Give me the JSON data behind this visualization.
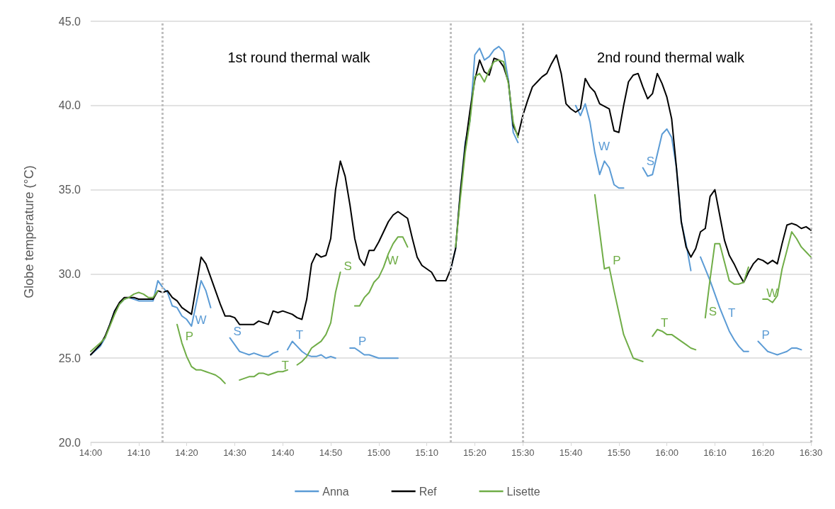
{
  "chart_data": {
    "type": "line",
    "ylabel": "Globe temperature (°C)",
    "xlim": [
      14,
      16.5
    ],
    "ylim": [
      20,
      45
    ],
    "xticks": [
      {
        "value": 14,
        "label": "14:00"
      },
      {
        "value": 14.1667,
        "label": "14:10"
      },
      {
        "value": 14.3333,
        "label": "14:20"
      },
      {
        "value": 14.5,
        "label": "14:30"
      },
      {
        "value": 14.6667,
        "label": "14:40"
      },
      {
        "value": 14.8333,
        "label": "14:50"
      },
      {
        "value": 15,
        "label": "15:00"
      },
      {
        "value": 15.1667,
        "label": "15:10"
      },
      {
        "value": 15.3333,
        "label": "15:20"
      },
      {
        "value": 15.5,
        "label": "15:30"
      },
      {
        "value": 15.6667,
        "label": "15:40"
      },
      {
        "value": 15.8333,
        "label": "15:50"
      },
      {
        "value": 16,
        "label": "16:00"
      },
      {
        "value": 16.1667,
        "label": "16:10"
      },
      {
        "value": 16.3333,
        "label": "16:20"
      },
      {
        "value": 16.5,
        "label": "16:30"
      }
    ],
    "yticks": [
      {
        "value": 20,
        "label": "20.0"
      },
      {
        "value": 25,
        "label": "25.0"
      },
      {
        "value": 30,
        "label": "30.0"
      },
      {
        "value": 35,
        "label": "35.0"
      },
      {
        "value": 40,
        "label": "40.0"
      },
      {
        "value": 45,
        "label": "45.0"
      }
    ],
    "grid": "y",
    "legend": "bottom",
    "marker": "none",
    "line_style": "solid",
    "series": [
      {
        "name": "Anna",
        "color": "#5b9bd5",
        "x": [
          14,
          14.0333,
          14.05,
          14.0667,
          14.0833,
          14.1,
          14.1167,
          14.1333,
          14.15,
          14.1667,
          14.2167,
          14.2333,
          14.25,
          14.2667,
          14.2833,
          14.3,
          14.3167,
          14.3333,
          14.35,
          14.3833,
          14.4,
          14.4167,
          14.45,
          14.4833,
          14.5,
          14.5167,
          14.5333,
          14.55,
          14.5667,
          14.5833,
          14.6,
          14.6167,
          14.6333,
          14.65,
          14.6667,
          14.6833,
          14.7,
          14.7167,
          14.7333,
          14.75,
          14.7667,
          14.7833,
          14.8,
          14.8167,
          14.8333,
          14.85,
          14.8667,
          14.9,
          14.9167,
          14.95,
          14.9667,
          15,
          15.0667,
          15.1667,
          15.25,
          15.2667,
          15.2833,
          15.3,
          15.3167,
          15.3333,
          15.35,
          15.3667,
          15.3833,
          15.4,
          15.4167,
          15.4333,
          15.45,
          15.4667,
          15.4833,
          15.5833,
          15.6833,
          15.7,
          15.7167,
          15.7333,
          15.75,
          15.7667,
          15.7833,
          15.8,
          15.8167,
          15.8333,
          15.85,
          15.8833,
          15.9167,
          15.9333,
          15.95,
          15.9667,
          15.9833,
          16,
          16.0167,
          16.0333,
          16.05,
          16.0667,
          16.0833,
          16.1,
          16.1167,
          16.15,
          16.1667,
          16.1833,
          16.2,
          16.2167,
          16.2333,
          16.25,
          16.2667,
          16.2833,
          16.3,
          16.3167,
          16.3333,
          16.35,
          16.3667,
          16.3833,
          16.4,
          16.4167,
          16.4333,
          16.45,
          16.4667
        ],
        "values": [
          25.2,
          25.7,
          26.2,
          27.0,
          27.8,
          28.2,
          28.5,
          28.6,
          28.5,
          28.4,
          28.4,
          29.6,
          29.2,
          28.9,
          28.1,
          28.0,
          27.5,
          27.3,
          26.9,
          29.6,
          29.0,
          28.0,
          null,
          26.2,
          25.8,
          25.4,
          25.3,
          25.2,
          25.3,
          25.2,
          25.1,
          25.1,
          25.3,
          25.4,
          null,
          25.5,
          26.0,
          25.7,
          25.4,
          25.2,
          25.1,
          25.1,
          25.2,
          25.0,
          25.1,
          25.0,
          null,
          25.6,
          25.6,
          25.2,
          25.2,
          25.0,
          25.0,
          null,
          30.3,
          31.5,
          34.9,
          37.8,
          39.1,
          43.0,
          43.4,
          42.7,
          42.9,
          43.3,
          43.5,
          43.2,
          41.5,
          38.4,
          37.8,
          null,
          40.0,
          39.4,
          40.1,
          39.0,
          37.2,
          35.9,
          36.7,
          36.3,
          35.3,
          35.1,
          35.1,
          null,
          36.3,
          35.8,
          35.9,
          37.1,
          38.3,
          38.6,
          38.1,
          36.3,
          33.1,
          31.8,
          30.2,
          null,
          31.0,
          29.6,
          28.8,
          28.0,
          27.3,
          26.6,
          26.1,
          25.7,
          25.4,
          25.4,
          null,
          26.0,
          25.7,
          25.4,
          25.3,
          25.2,
          25.3,
          25.4,
          25.6,
          25.6,
          25.5
        ]
      },
      {
        "name": "Ref",
        "color": "#000000",
        "x": [
          14,
          14.0333,
          14.05,
          14.0667,
          14.0833,
          14.1,
          14.1167,
          14.15,
          14.1667,
          14.2,
          14.2167,
          14.2333,
          14.25,
          14.2667,
          14.2833,
          14.3,
          14.3167,
          14.35,
          14.3833,
          14.4,
          14.4167,
          14.4333,
          14.45,
          14.4667,
          14.4833,
          14.5,
          14.5167,
          14.5667,
          14.5833,
          14.6167,
          14.6333,
          14.65,
          14.6667,
          14.7,
          14.7167,
          14.7333,
          14.75,
          14.7667,
          14.7833,
          14.8,
          14.8167,
          14.8333,
          14.85,
          14.8667,
          14.8833,
          14.9,
          14.9167,
          14.9333,
          14.95,
          14.9667,
          14.9833,
          15,
          15.0167,
          15.0333,
          15.05,
          15.0667,
          15.1,
          15.1167,
          15.1333,
          15.15,
          15.1833,
          15.2,
          15.2333,
          15.25,
          15.2667,
          15.2833,
          15.3,
          15.3167,
          15.3333,
          15.35,
          15.3667,
          15.3833,
          15.4,
          15.4167,
          15.4333,
          15.45,
          15.4667,
          15.4833,
          15.5,
          15.5167,
          15.5333,
          15.55,
          15.5667,
          15.5833,
          15.6,
          15.6167,
          15.6333,
          15.65,
          15.6667,
          15.6833,
          15.7,
          15.7167,
          15.7333,
          15.75,
          15.7667,
          15.8,
          15.8167,
          15.8333,
          15.85,
          15.8667,
          15.8833,
          15.9,
          15.9167,
          15.9333,
          15.95,
          15.9667,
          15.9833,
          16,
          16.0167,
          16.0333,
          16.05,
          16.0667,
          16.0833,
          16.1,
          16.1167,
          16.1333,
          16.15,
          16.1667,
          16.1833,
          16.2,
          16.2167,
          16.2333,
          16.25,
          16.2667,
          16.2833,
          16.3,
          16.3167,
          16.3333,
          16.35,
          16.3667,
          16.3833,
          16.4,
          16.4167,
          16.4333,
          16.45,
          16.4667,
          16.4833,
          16.5
        ],
        "values": [
          25.2,
          25.8,
          26.3,
          27.0,
          27.8,
          28.3,
          28.6,
          28.6,
          28.5,
          28.5,
          28.5,
          29.0,
          28.9,
          29.0,
          28.6,
          28.4,
          28.0,
          27.6,
          31.0,
          30.6,
          29.8,
          29.0,
          28.2,
          27.5,
          27.5,
          27.4,
          27.0,
          27.0,
          27.2,
          27.0,
          27.8,
          27.7,
          27.8,
          27.6,
          27.4,
          27.3,
          28.5,
          30.6,
          31.2,
          31.0,
          31.1,
          32.1,
          35.0,
          36.7,
          35.8,
          34.1,
          32.1,
          30.9,
          30.5,
          31.4,
          31.4,
          31.9,
          32.5,
          33.1,
          33.5,
          33.7,
          33.3,
          32.1,
          31.0,
          30.5,
          30.1,
          29.6,
          29.6,
          30.3,
          31.5,
          34.9,
          37.6,
          39.7,
          41.5,
          42.7,
          42.0,
          41.8,
          42.8,
          42.7,
          42.3,
          41.4,
          38.8,
          38.2,
          39.4,
          40.3,
          41.1,
          41.4,
          41.7,
          41.9,
          42.5,
          43.0,
          41.9,
          40.1,
          39.8,
          39.6,
          39.8,
          41.6,
          41.1,
          40.8,
          40.1,
          39.8,
          38.5,
          38.4,
          40.0,
          41.4,
          41.8,
          41.9,
          41.1,
          40.4,
          40.7,
          41.9,
          41.3,
          40.5,
          39.2,
          36.3,
          33.1,
          31.6,
          31.0,
          31.5,
          32.5,
          32.7,
          34.6,
          35.0,
          33.5,
          32.0,
          31.1,
          30.6,
          30.0,
          29.5,
          30.1,
          30.6,
          30.9,
          30.8,
          30.6,
          30.8,
          30.6,
          31.8,
          32.9,
          33.0,
          32.9,
          32.7,
          32.8,
          32.6
        ]
      },
      {
        "name": "Lisette",
        "color": "#70ad47",
        "x": [
          14,
          14.0333,
          14.05,
          14.0667,
          14.0833,
          14.1,
          14.1167,
          14.1333,
          14.15,
          14.1667,
          14.1833,
          14.2,
          14.2167,
          14.2333,
          14.2667,
          14.3,
          14.3167,
          14.3333,
          14.35,
          14.3667,
          14.3833,
          14.4,
          14.4167,
          14.4333,
          14.45,
          14.4667,
          14.5,
          14.5167,
          14.55,
          14.5667,
          14.5833,
          14.6,
          14.6167,
          14.65,
          14.6667,
          14.6833,
          14.7,
          14.7167,
          14.7333,
          14.75,
          14.7667,
          14.7833,
          14.8,
          14.8167,
          14.8333,
          14.85,
          14.8667,
          14.9,
          14.9167,
          14.9333,
          14.95,
          14.9667,
          14.9833,
          15,
          15.0167,
          15.0333,
          15.05,
          15.0667,
          15.0833,
          15.1,
          15.1667,
          15.2667,
          15.2833,
          15.3,
          15.3167,
          15.3333,
          15.35,
          15.3667,
          15.3833,
          15.4,
          15.4167,
          15.4333,
          15.45,
          15.4667,
          15.4833,
          15.5833,
          15.75,
          15.7667,
          15.7833,
          15.8,
          15.8167,
          15.8333,
          15.85,
          15.8667,
          15.8833,
          15.9167,
          15.9333,
          15.95,
          15.9667,
          15.9833,
          16,
          16.0167,
          16.0333,
          16.05,
          16.0667,
          16.0833,
          16.1,
          16.1167,
          16.1333,
          16.15,
          16.1667,
          16.1833,
          16.2,
          16.2167,
          16.2333,
          16.25,
          16.2667,
          16.2833,
          16.3,
          16.3333,
          16.35,
          16.3667,
          16.3833,
          16.4,
          16.4167,
          16.4333,
          16.45,
          16.4667,
          16.4833,
          16.5
        ],
        "values": [
          25.4,
          25.9,
          26.2,
          26.9,
          27.6,
          28.2,
          28.5,
          28.6,
          28.8,
          28.9,
          28.8,
          28.6,
          28.6,
          29.0,
          null,
          27.0,
          25.9,
          25.1,
          24.5,
          24.3,
          24.3,
          24.2,
          24.1,
          24.0,
          23.8,
          23.5,
          null,
          23.7,
          23.9,
          23.9,
          24.1,
          24.1,
          24.0,
          24.2,
          24.2,
          24.3,
          null,
          24.6,
          24.8,
          25.1,
          25.6,
          25.8,
          26.0,
          26.4,
          27.1,
          28.9,
          30.1,
          null,
          28.1,
          28.1,
          28.6,
          28.9,
          29.5,
          29.8,
          30.4,
          31.2,
          31.8,
          32.2,
          32.2,
          31.6,
          null,
          31.6,
          34.5,
          37.2,
          39.1,
          41.7,
          41.9,
          41.4,
          42.1,
          42.6,
          42.7,
          42.6,
          41.3,
          39.0,
          38.1,
          null,
          34.7,
          32.5,
          30.3,
          30.4,
          29.0,
          27.7,
          26.4,
          25.7,
          25.0,
          24.8,
          null,
          26.3,
          26.7,
          26.6,
          26.4,
          26.4,
          26.2,
          26.0,
          25.8,
          25.6,
          25.5,
          null,
          27.4,
          29.7,
          31.8,
          31.8,
          30.7,
          29.6,
          29.4,
          29.4,
          29.5,
          30.4,
          null,
          28.5,
          28.5,
          28.3,
          28.7,
          30.3,
          31.4,
          32.5,
          32.1,
          31.6,
          31.3,
          31.0
        ]
      }
    ],
    "ref_lines": [
      {
        "axis": "x",
        "value": 14.25,
        "color": "#bfbfbf",
        "line_style": "dotted"
      },
      {
        "axis": "x",
        "value": 15.25,
        "color": "#bfbfbf",
        "line_style": "dotted"
      },
      {
        "axis": "x",
        "value": 15.5,
        "color": "#bfbfbf",
        "line_style": "dotted"
      },
      {
        "axis": "x",
        "value": 16.5,
        "color": "#bfbfbf",
        "line_style": "dotted"
      }
    ],
    "annotations": [
      "1st round thermal walk",
      "2nd round thermal walk",
      {
        "text": "W",
        "x": 14.35,
        "y": 26.9
      },
      {
        "text": "S",
        "x": 14.4833,
        "y": 26.2
      },
      {
        "text": "T",
        "x": 14.7,
        "y": 26.0
      },
      {
        "text": "P",
        "x": 14.9167,
        "y": 25.6
      },
      {
        "text": "W",
        "x": 15.75,
        "y": 37.2
      },
      {
        "text": "S",
        "x": 15.9167,
        "y": 36.3
      },
      {
        "text": "T",
        "x": 16.2,
        "y": 27.3
      },
      {
        "text": "P",
        "x": 16.3167,
        "y": 26.0
      },
      {
        "text": "P",
        "x": 14.3167,
        "y": 25.9
      },
      {
        "text": "T",
        "x": 14.65,
        "y": 24.2
      },
      {
        "text": "S",
        "x": 14.8667,
        "y": 30.1
      },
      {
        "text": "W",
        "x": 15.0167,
        "y": 30.4
      },
      {
        "text": "P",
        "x": 15.8,
        "y": 30.4
      },
      {
        "text": "T",
        "x": 15.9667,
        "y": 26.7
      },
      {
        "text": "S",
        "x": 16.1333,
        "y": 27.4
      },
      {
        "text": "W",
        "x": 16.3333,
        "y": 28.5
      }
    ]
  }
}
